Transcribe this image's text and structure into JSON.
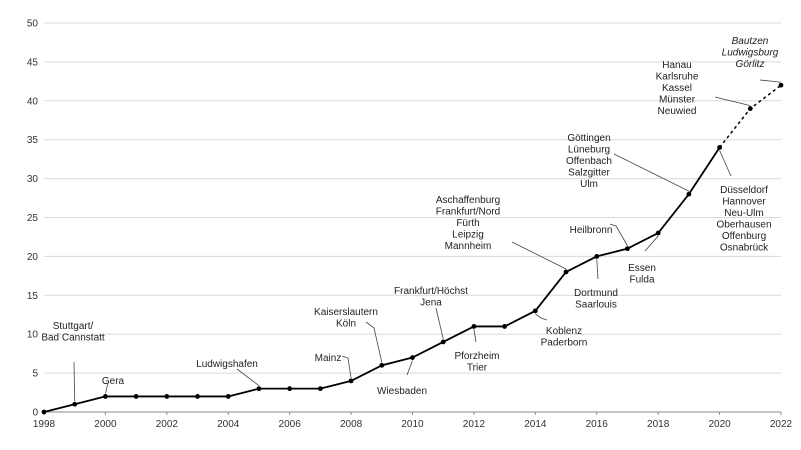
{
  "chart_data": {
    "type": "line",
    "title": "",
    "xlabel": "",
    "ylabel": "",
    "xlim": [
      1998,
      2022
    ],
    "ylim": [
      0,
      50
    ],
    "grid": true,
    "x_ticks": [
      1998,
      2000,
      2002,
      2004,
      2006,
      2008,
      2010,
      2012,
      2014,
      2016,
      2018,
      2020,
      2022
    ],
    "y_ticks": [
      0,
      5,
      10,
      15,
      20,
      25,
      30,
      35,
      40,
      45,
      50
    ],
    "series": [
      {
        "x": [
          1998,
          1999,
          2000,
          2001,
          2002,
          2003,
          2004,
          2005,
          2006,
          2007,
          2008,
          2009,
          2010,
          2011,
          2012,
          2013,
          2014,
          2015,
          2016,
          2017,
          2018,
          2019,
          2020,
          2021,
          2022
        ],
        "values": [
          0,
          1,
          2,
          2,
          2,
          2,
          2,
          3,
          3,
          3,
          4,
          6,
          7,
          9,
          11,
          11,
          13,
          18,
          20,
          21,
          23,
          28,
          34,
          39,
          42
        ],
        "dashed_from_x": 2020
      }
    ],
    "annotations": [
      {
        "x": 1999,
        "y": 1,
        "lines": [
          "Stuttgart/",
          "Bad Cannstatt"
        ]
      },
      {
        "x": 2000,
        "y": 2,
        "lines": [
          "Gera"
        ]
      },
      {
        "x": 2005,
        "y": 3,
        "lines": [
          "Ludwigshafen"
        ]
      },
      {
        "x": 2008,
        "y": 4,
        "lines": [
          "Mainz"
        ]
      },
      {
        "x": 2009,
        "y": 6,
        "lines": [
          "Kaiserslautern",
          "Köln"
        ]
      },
      {
        "x": 2010,
        "y": 7,
        "lines": [
          "Wiesbaden"
        ]
      },
      {
        "x": 2011,
        "y": 9,
        "lines": [
          "Frankfurt/Höchst",
          "Jena"
        ]
      },
      {
        "x": 2012,
        "y": 11,
        "lines": [
          "Pforzheim",
          "Trier"
        ]
      },
      {
        "x": 2014,
        "y": 13,
        "lines": [
          "Koblenz",
          "Paderborn"
        ]
      },
      {
        "x": 2015,
        "y": 18,
        "lines": [
          "Aschaffenburg",
          "Frankfurt/Nord",
          "Fürth",
          "Leipzig",
          "Mannheim"
        ]
      },
      {
        "x": 2016,
        "y": 20,
        "lines": [
          "Dortmund",
          "Saarlouis"
        ]
      },
      {
        "x": 2017,
        "y": 21,
        "lines": [
          "Heilbronn"
        ]
      },
      {
        "x": 2018,
        "y": 23,
        "lines": [
          "Essen",
          "Fulda"
        ]
      },
      {
        "x": 2019,
        "y": 28,
        "lines": [
          "Göttingen",
          "Lüneburg",
          "Offenbach",
          "Salzgitter",
          "Ulm"
        ]
      },
      {
        "x": 2020,
        "y": 34,
        "lines": [
          "Düsseldorf",
          "Hannover",
          "Neu-Ulm",
          "Oberhausen",
          "Offenburg",
          "Osnabrück"
        ]
      },
      {
        "x": 2021,
        "y": 39,
        "lines": [
          "Hanau",
          "Karlsruhe",
          "Kassel",
          "Münster",
          "Neuwied"
        ]
      },
      {
        "x": 2022,
        "y": 42,
        "lines": [
          "Bautzen",
          "Ludwigsburg",
          "Görlitz"
        ],
        "italic": true
      }
    ]
  }
}
